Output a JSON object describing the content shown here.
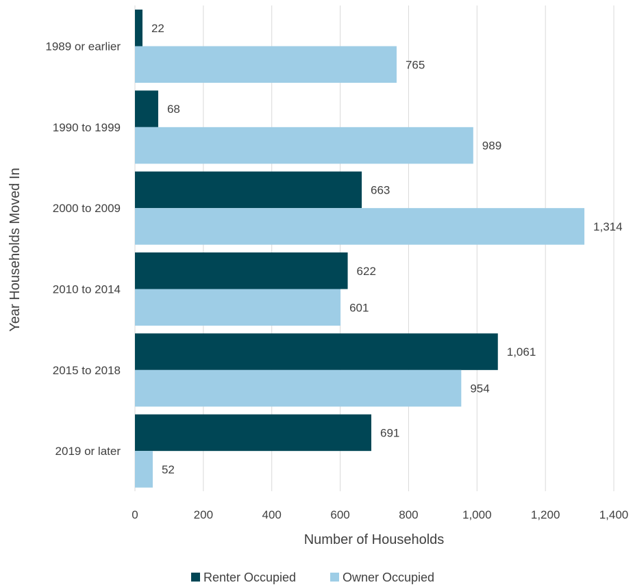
{
  "chart_data": {
    "type": "bar",
    "orientation": "horizontal",
    "categories": [
      "1989 or earlier",
      "1990 to 1999",
      "2000 to 2009",
      "2010 to 2014",
      "2015 to 2018",
      "2019 or later"
    ],
    "series": [
      {
        "name": "Renter Occupied",
        "color": "#004655",
        "values": [
          22,
          68,
          663,
          622,
          1061,
          691
        ],
        "labels": [
          "22",
          "68",
          "663",
          "622",
          "1,061",
          "691"
        ]
      },
      {
        "name": "Owner Occupied",
        "color": "#9ecde6",
        "values": [
          765,
          989,
          1314,
          601,
          954,
          52
        ],
        "labels": [
          "765",
          "989",
          "1,314",
          "601",
          "954",
          "52"
        ]
      }
    ],
    "xlabel": "Number of Households",
    "ylabel": "Year Households Moved In",
    "xlim": [
      0,
      1400
    ],
    "xticks": [
      0,
      200,
      400,
      600,
      800,
      1000,
      1200,
      1400
    ],
    "xtick_labels": [
      "0",
      "200",
      "400",
      "600",
      "800",
      "1,000",
      "1,200",
      "1,400"
    ],
    "grid": "vertical",
    "legend_position": "bottom"
  }
}
